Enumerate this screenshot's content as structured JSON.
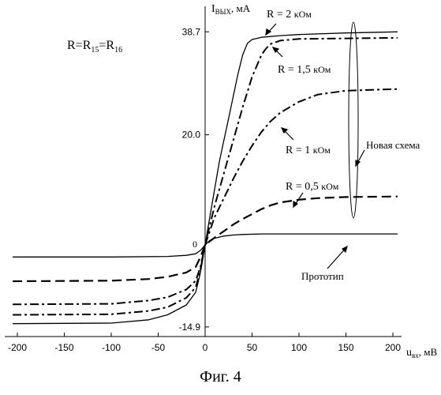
{
  "figure_caption": "Фиг. 4",
  "formula": {
    "prefix": "R=R",
    "sub1": "15",
    "mid": "=R",
    "sub2": "16"
  },
  "chart_data": {
    "type": "line",
    "title": "",
    "xlabel": {
      "main": "u",
      "sub": "вх",
      "unit": ", мВ"
    },
    "ylabel": {
      "main": "I",
      "sub": "ВЫХ",
      "unit": ", мА"
    },
    "xlim": [
      -200,
      205
    ],
    "ylim": [
      -14.9,
      40.5
    ],
    "x_ticks": [
      -200,
      -150,
      -100,
      -50,
      0,
      50,
      100,
      150,
      200
    ],
    "x_tick_labels": [
      "-200",
      "-150",
      "-100",
      "-50",
      "0",
      "50",
      "100",
      "150",
      "200"
    ],
    "y_ticks": [
      38.7,
      20.0,
      -14.9
    ],
    "y_tick_labels": [
      "38.7",
      "20.0",
      "-14.9"
    ],
    "origin_label": "0",
    "series": [
      {
        "name": "R = 2 кОм",
        "style": "solid",
        "x": [
          -205,
          -100,
          -60,
          -40,
          -20,
          -10,
          -5,
          0,
          5,
          10,
          15,
          20,
          25,
          30,
          35,
          40,
          45,
          50,
          60,
          80,
          100,
          150,
          205
        ],
        "y": [
          -14.3,
          -14.2,
          -13.6,
          -12.7,
          -10.9,
          -8.6,
          -5.0,
          0,
          5.0,
          10.0,
          15.0,
          19.0,
          23.0,
          27.0,
          31.0,
          34.5,
          36.6,
          37.3,
          37.7,
          38.0,
          38.2,
          38.5,
          38.7
        ]
      },
      {
        "name": "R = 1,5 кОм",
        "style": "dashdot",
        "x": [
          -205,
          -100,
          -60,
          -40,
          -20,
          -10,
          -5,
          0,
          5,
          10,
          20,
          30,
          40,
          50,
          60,
          65,
          70,
          80,
          100,
          150,
          205
        ],
        "y": [
          -12.7,
          -12.6,
          -12.0,
          -11.3,
          -9.6,
          -7.7,
          -4.5,
          0,
          3.5,
          7.0,
          13.0,
          19.0,
          25.0,
          30.5,
          34.5,
          35.7,
          36.5,
          37.1,
          37.4,
          37.5,
          37.6
        ]
      },
      {
        "name": "R = 1 кОм",
        "style": "dashdot",
        "x": [
          -205,
          -100,
          -60,
          -40,
          -20,
          -10,
          -5,
          0,
          5,
          10,
          20,
          30,
          40,
          50,
          60,
          70,
          80,
          100,
          120,
          150,
          205
        ],
        "y": [
          -10.8,
          -10.7,
          -10.1,
          -9.5,
          -8.1,
          -6.5,
          -4.0,
          0,
          2.5,
          5.0,
          8.5,
          12.0,
          15.2,
          18.0,
          20.5,
          22.5,
          24.0,
          26.0,
          27.3,
          28.0,
          28.3
        ]
      },
      {
        "name": "R = 0,5 кОм",
        "style": "dashed",
        "x": [
          -205,
          -100,
          -60,
          -40,
          -20,
          -10,
          -5,
          0,
          10,
          20,
          30,
          40,
          50,
          60,
          70,
          80,
          100,
          120,
          150,
          205
        ],
        "y": [
          -6.6,
          -6.5,
          -6.2,
          -5.8,
          -5.0,
          -4.0,
          -2.2,
          0,
          1.3,
          2.5,
          3.7,
          4.7,
          5.6,
          6.5,
          7.2,
          7.7,
          8.2,
          8.5,
          8.7,
          8.8
        ]
      },
      {
        "name": "Прототип",
        "style": "solid",
        "x": [
          -205,
          -100,
          -40,
          -20,
          -10,
          -5,
          0,
          5,
          10,
          20,
          30,
          40,
          60,
          100,
          150,
          205
        ],
        "y": [
          -2.2,
          -2.2,
          -2.1,
          -1.9,
          -1.6,
          -1.0,
          0,
          0.8,
          1.2,
          1.6,
          1.8,
          1.9,
          2.0,
          2.0,
          2.0,
          2.0
        ]
      }
    ],
    "annotations": {
      "group_label": "Новая схема",
      "r_labels": [
        {
          "name": "R = 2 кОм",
          "main": "R = 2 ",
          "unit": "кОм"
        },
        {
          "name": "R = 1,5 кОм",
          "main": "R = 1,5 ",
          "unit": "кОм"
        },
        {
          "name": "R = 1 кОм",
          "main": "R = 1 ",
          "unit": "кОм"
        },
        {
          "name": "R = 0,5 кОм",
          "main": "R = 0,5 ",
          "unit": "кОм"
        }
      ],
      "prototype_label": "Прототип"
    }
  }
}
